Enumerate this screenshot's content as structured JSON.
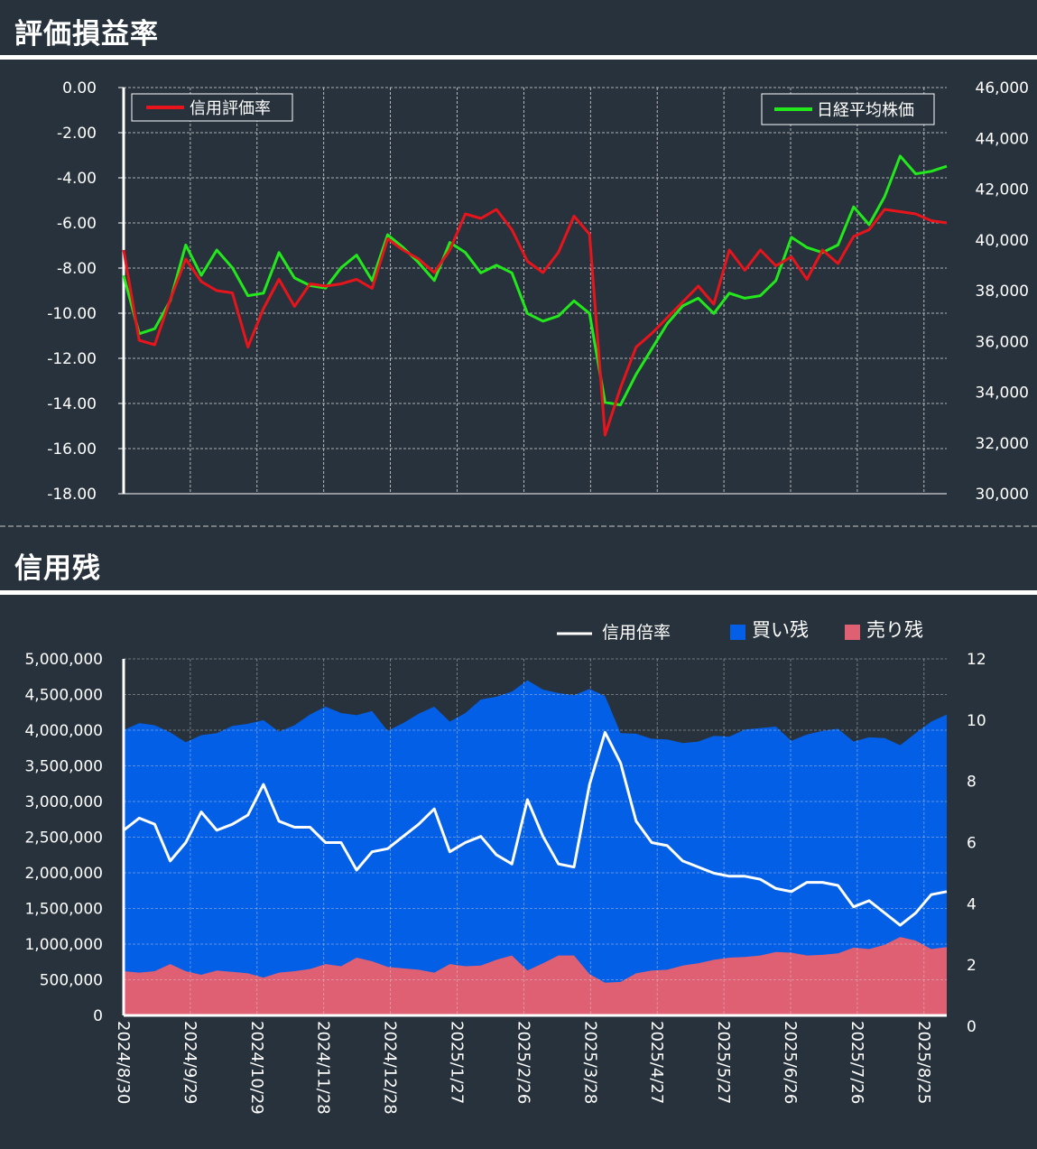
{
  "sections": {
    "valuation_title": "評価損益率",
    "margin_title": "信用残"
  },
  "colors": {
    "background": "#27323c",
    "valuation_rate": "#e8141c",
    "nikkei": "#23e81c",
    "ratio": "#ffffff",
    "buy_balance": "#045fe7",
    "sell_balance": "#df6072"
  },
  "chart_data": [
    {
      "type": "line",
      "title": "評価損益率",
      "x": [
        "2024/8/30",
        "2024/9/6",
        "2024/9/13",
        "2024/9/20",
        "2024/9/27",
        "2024/10/4",
        "2024/10/11",
        "2024/10/18",
        "2024/10/25",
        "2024/11/1",
        "2024/11/8",
        "2024/11/15",
        "2024/11/22",
        "2024/11/29",
        "2024/12/6",
        "2024/12/13",
        "2024/12/20",
        "2024/12/27",
        "2025/1/3",
        "2025/1/10",
        "2025/1/17",
        "2025/1/24",
        "2025/1/31",
        "2025/2/7",
        "2025/2/14",
        "2025/2/21",
        "2025/2/28",
        "2025/3/7",
        "2025/3/14",
        "2025/3/21",
        "2025/3/28",
        "2025/4/4",
        "2025/4/11",
        "2025/4/18",
        "2025/4/25",
        "2025/5/2",
        "2025/5/9",
        "2025/5/16",
        "2025/5/23",
        "2025/5/30",
        "2025/6/6",
        "2025/6/13",
        "2025/6/20",
        "2025/6/27",
        "2025/7/4",
        "2025/7/11",
        "2025/7/18",
        "2025/7/25",
        "2025/8/1",
        "2025/8/8",
        "2025/8/15",
        "2025/8/22",
        "2025/8/29",
        "2025/9/5"
      ],
      "x_tick_labels": [
        "2024/8/30",
        "2024/9/29",
        "2024/10/29",
        "2024/11/28",
        "2024/12/28",
        "2025/1/27",
        "2025/2/26",
        "2025/3/28",
        "2025/4/27",
        "2025/5/27",
        "2025/6/26",
        "2025/7/26",
        "2025/8/25"
      ],
      "y_left_ticks": [
        "0.00",
        "-2.00",
        "-4.00",
        "-6.00",
        "-8.00",
        "-10.00",
        "-12.00",
        "-14.00",
        "-16.00",
        "-18.00"
      ],
      "y_right_ticks": [
        "46,000",
        "44,000",
        "42,000",
        "40,000",
        "38,000",
        "36,000",
        "34,000",
        "32,000",
        "30,000"
      ],
      "ylim_left": [
        -18,
        0
      ],
      "ylim_right": [
        30000,
        46000
      ],
      "grid": true,
      "series": [
        {
          "name": "信用評価率",
          "axis": "left",
          "values": [
            -7.2,
            -11.2,
            -11.4,
            -9.4,
            -7.6,
            -8.6,
            -9.0,
            -9.1,
            -11.5,
            -9.8,
            -8.5,
            -9.7,
            -8.7,
            -8.8,
            -8.7,
            -8.5,
            -8.9,
            -6.7,
            -7.2,
            -7.6,
            -8.2,
            -7.2,
            -5.6,
            -5.8,
            -5.4,
            -6.3,
            -7.7,
            -8.2,
            -7.3,
            -5.7,
            -6.5,
            -15.4,
            -13.3,
            -11.5,
            -10.9,
            -10.2,
            -9.5,
            -8.8,
            -9.6,
            -7.2,
            -8.1,
            -7.2,
            -7.9,
            -7.5,
            -8.5,
            -7.2,
            -7.8,
            -6.6,
            -6.3,
            -5.4,
            -5.5,
            -5.6,
            -5.9,
            -6.0
          ]
        },
        {
          "name": "日経平均株価",
          "axis": "right",
          "values": [
            38600,
            36300,
            36500,
            37600,
            39800,
            38600,
            39600,
            38900,
            37800,
            37900,
            39500,
            38500,
            38200,
            38100,
            38900,
            39400,
            38400,
            40200,
            39700,
            39100,
            38400,
            39900,
            39500,
            38700,
            39000,
            38700,
            37100,
            36800,
            37000,
            37600,
            37100,
            33600,
            33500,
            34700,
            35700,
            36700,
            37400,
            37700,
            37100,
            37900,
            37700,
            37800,
            38400,
            40100,
            39700,
            39500,
            39800,
            41300,
            40600,
            41700,
            43300,
            42600,
            42700,
            42900
          ]
        }
      ],
      "legend": [
        "top-left",
        "top-right"
      ]
    },
    {
      "type": "area",
      "title": "信用残",
      "x_tick_labels": [
        "2024/8/30",
        "2024/9/29",
        "2024/10/29",
        "2024/11/28",
        "2024/12/28",
        "2025/1/27",
        "2025/2/26",
        "2025/3/28",
        "2025/4/27",
        "2025/5/27",
        "2025/6/26",
        "2025/7/26",
        "2025/8/25"
      ],
      "y_left_ticks": [
        "5,000,000",
        "4,500,000",
        "4,000,000",
        "3,500,000",
        "3,000,000",
        "2,500,000",
        "2,000,000",
        "1,500,000",
        "1,000,000",
        "500,000",
        "0"
      ],
      "y_right_ticks": [
        "12",
        "10",
        "8",
        "6",
        "4",
        "2",
        "0"
      ],
      "ylim_left": [
        0,
        5000000
      ],
      "ylim_right": [
        0,
        12
      ],
      "grid": true,
      "legend_placement": "top-right",
      "series": [
        {
          "name": "買い残",
          "kind": "area",
          "axis": "left",
          "values": [
            4000000,
            4100000,
            4070000,
            3970000,
            3830000,
            3930000,
            3960000,
            4060000,
            4090000,
            4140000,
            3980000,
            4070000,
            4220000,
            4330000,
            4240000,
            4210000,
            4270000,
            3990000,
            4100000,
            4230000,
            4330000,
            4120000,
            4240000,
            4430000,
            4470000,
            4540000,
            4700000,
            4570000,
            4520000,
            4490000,
            4580000,
            4480000,
            3960000,
            3950000,
            3880000,
            3870000,
            3820000,
            3840000,
            3920000,
            3910000,
            4010000,
            4030000,
            4050000,
            3850000,
            3940000,
            3990000,
            4020000,
            3840000,
            3900000,
            3890000,
            3790000,
            3960000,
            4120000,
            4220000
          ]
        },
        {
          "name": "売り残",
          "kind": "area",
          "axis": "left",
          "values": [
            620000,
            600000,
            620000,
            720000,
            620000,
            570000,
            630000,
            610000,
            590000,
            530000,
            600000,
            620000,
            650000,
            720000,
            690000,
            810000,
            760000,
            680000,
            660000,
            640000,
            600000,
            720000,
            690000,
            700000,
            780000,
            840000,
            630000,
            730000,
            840000,
            840000,
            580000,
            460000,
            470000,
            590000,
            630000,
            640000,
            700000,
            730000,
            780000,
            810000,
            820000,
            840000,
            890000,
            880000,
            840000,
            850000,
            870000,
            950000,
            930000,
            990000,
            1100000,
            1050000,
            930000,
            960000
          ]
        },
        {
          "name": "信用倍率",
          "kind": "line",
          "axis": "right",
          "values": [
            6.4,
            6.8,
            6.6,
            5.4,
            6.0,
            7.0,
            6.4,
            6.6,
            6.9,
            7.9,
            6.7,
            6.5,
            6.5,
            6.0,
            6.0,
            5.1,
            5.7,
            5.8,
            6.2,
            6.6,
            7.1,
            5.7,
            6.0,
            6.2,
            5.6,
            5.3,
            7.4,
            6.2,
            5.3,
            5.2,
            7.9,
            9.6,
            8.6,
            6.7,
            6.0,
            5.9,
            5.4,
            5.2,
            5.0,
            4.9,
            4.9,
            4.8,
            4.5,
            4.4,
            4.7,
            4.7,
            4.6,
            3.9,
            4.1,
            3.7,
            3.3,
            3.7,
            4.3,
            4.4
          ]
        }
      ]
    }
  ]
}
